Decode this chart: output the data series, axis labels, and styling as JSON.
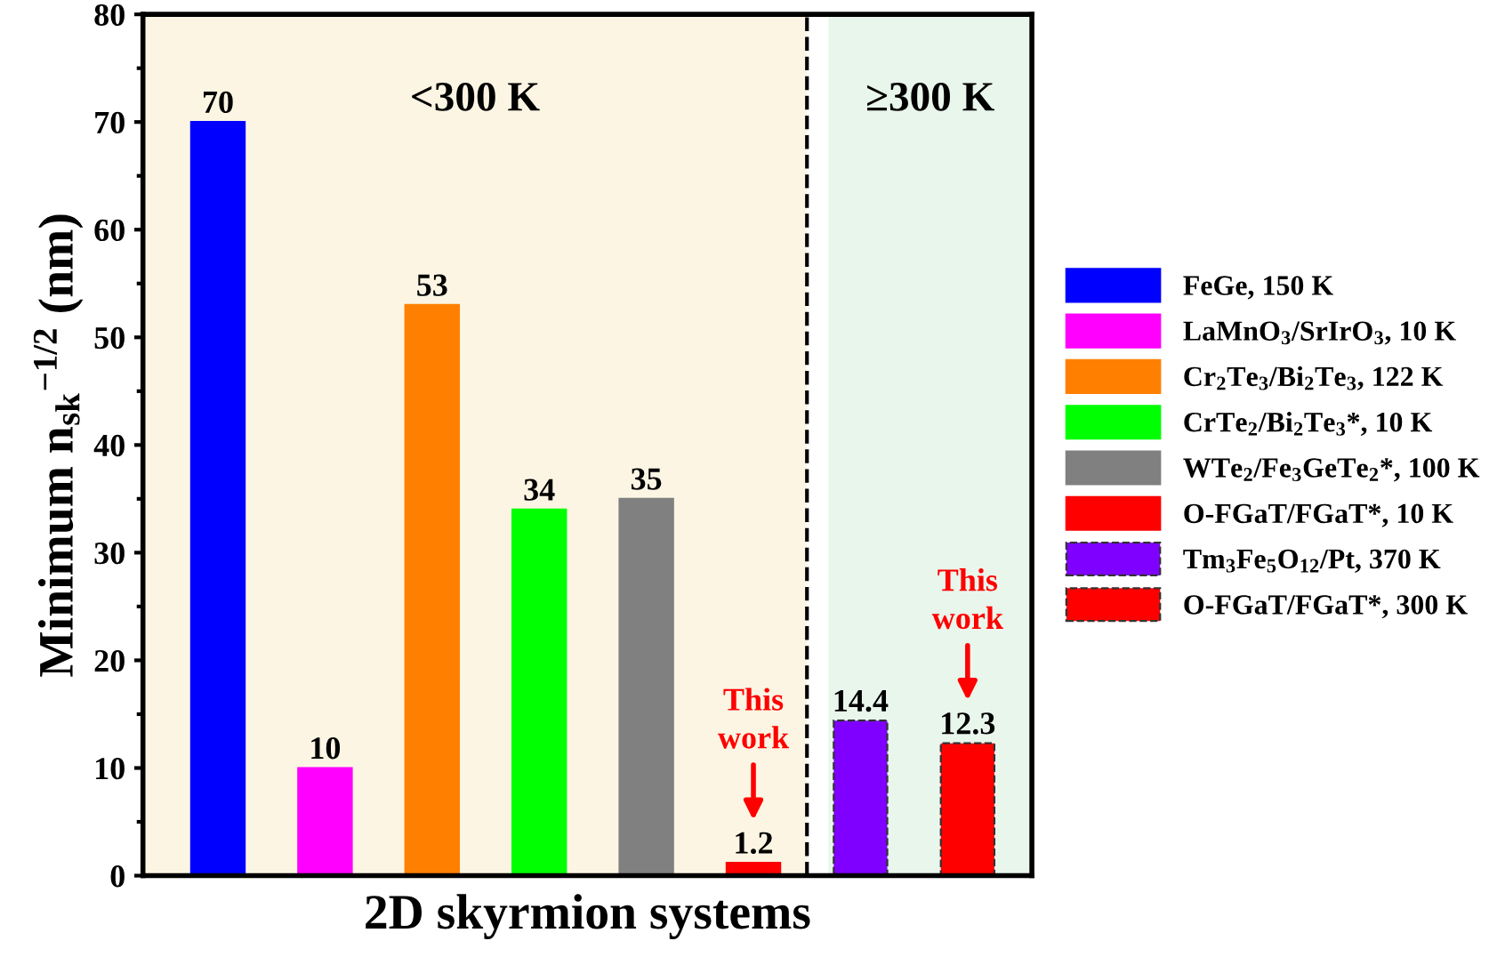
{
  "chart_data": {
    "type": "bar",
    "xlabel": "2D skyrmion systems",
    "ylabel": "Minimum n$_{sk}$$^{−1/2}$ (nm)",
    "categories": [
      null,
      null,
      null,
      null,
      null,
      null,
      null,
      null
    ],
    "series": [
      {
        "name": "FeGe, 150 K",
        "color": "#0000ff",
        "values": [
          70,
          null,
          null,
          null,
          null,
          null,
          null,
          null
        ]
      },
      {
        "name": "LaMnO$_{3}$/SrIrO$_{3}$, 10 K",
        "color": "#ff00ff",
        "values": [
          null,
          10,
          null,
          null,
          null,
          null,
          null,
          null
        ]
      },
      {
        "name": "Cr$_{2}$Te$_{3}$/Bi$_{2}$Te$_{3}$, 122 K",
        "color": "#ff8000",
        "values": [
          null,
          null,
          53,
          null,
          null,
          null,
          null,
          null
        ]
      },
      {
        "name": "CrTe$_{2}$/Bi$_{2}$Te$_{3}$*, 10 K",
        "color": "#00ff00",
        "values": [
          null,
          null,
          null,
          34,
          null,
          null,
          null,
          null
        ]
      },
      {
        "name": "WTe$_{2}$/Fe$_{3}$GeTe$_{2}$*, 100 K",
        "color": "#808080",
        "values": [
          null,
          null,
          null,
          null,
          35,
          null,
          null,
          null
        ]
      },
      {
        "name": "O-FGaT/FGaT*, 10 K",
        "color": "#ff0000",
        "values": [
          null,
          null,
          null,
          null,
          null,
          1.2,
          null,
          null
        ]
      },
      {
        "name": "Tm$_{3}$Fe$_{5}$O$_{12}$/Pt, 370 K",
        "color": "#8000ff",
        "line_style": "dashed",
        "values": [
          null,
          null,
          null,
          null,
          null,
          null,
          14.4,
          null
        ]
      },
      {
        "name": "O-FGaT/FGaT*, 300 K",
        "color": "#ff0000",
        "line_style": "dashed",
        "values": [
          null,
          null,
          null,
          null,
          null,
          null,
          null,
          12.3
        ]
      }
    ],
    "data_labels": true,
    "ylim": [
      0,
      80
    ],
    "yticks": [
      0,
      {
        "value": 5,
        "label": null
      },
      10,
      {
        "value": 15,
        "label": null
      },
      20,
      {
        "value": 25,
        "label": null
      },
      30,
      {
        "value": 35,
        "label": null
      },
      40,
      {
        "value": 45,
        "label": null
      },
      50,
      {
        "value": 55,
        "label": null
      },
      60,
      {
        "value": 65,
        "label": null
      },
      70,
      {
        "value": 75,
        "label": null
      },
      80
    ],
    "annotations": [
      "<300 K",
      "≥300 K",
      "This work",
      "This work"
    ],
    "grid": false,
    "legend": "right"
  }
}
